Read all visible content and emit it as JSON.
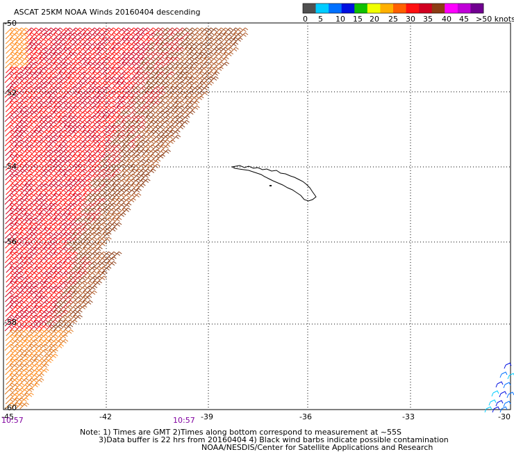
{
  "title": "ASCAT 25KM NOAA Winds 20160404 descending",
  "colorbar": {
    "colors": [
      "#505050",
      "#00ccff",
      "#0070ff",
      "#0010e0",
      "#10c000",
      "#f0ff00",
      "#ffb000",
      "#ff6000",
      "#ff1010",
      "#d00020",
      "#8c3c14",
      "#ff00ff",
      "#c000d8",
      "#700090"
    ],
    "labels": [
      "0",
      "5",
      "10",
      "15",
      "20",
      "25",
      "30",
      "35",
      "40",
      "45",
      ">50 knots"
    ]
  },
  "lat_ticks": [
    "-50",
    "-52",
    "-54",
    "-56",
    "-58",
    "-60"
  ],
  "lon_ticks": [
    "-45",
    "-42",
    "-39",
    "-36",
    "-33",
    "-30"
  ],
  "times": [
    "10:57",
    "10:57"
  ],
  "notes": [
    "Note: 1) Times are GMT 2)Times along bottom correspond to measurement at ~55S",
    "3)Data buffer is 22 hrs from 20160404 4) Black wind barbs indicate possible contamination",
    "NOAA/NESDIS/Center for Satellite Applications and Research"
  ],
  "map_data": {
    "lon_range": [
      -45,
      -30
    ],
    "lat_range": [
      -60,
      -50
    ],
    "swath_colors": [
      "#d00020",
      "#ff1010",
      "#c81e1e",
      "#8c3c14",
      "#b05a28",
      "#ff8c1e",
      "#e0781e"
    ],
    "east_swath_colors": [
      "#0010e0",
      "#0070ff",
      "#00ccff"
    ],
    "island": "South Georgia"
  }
}
